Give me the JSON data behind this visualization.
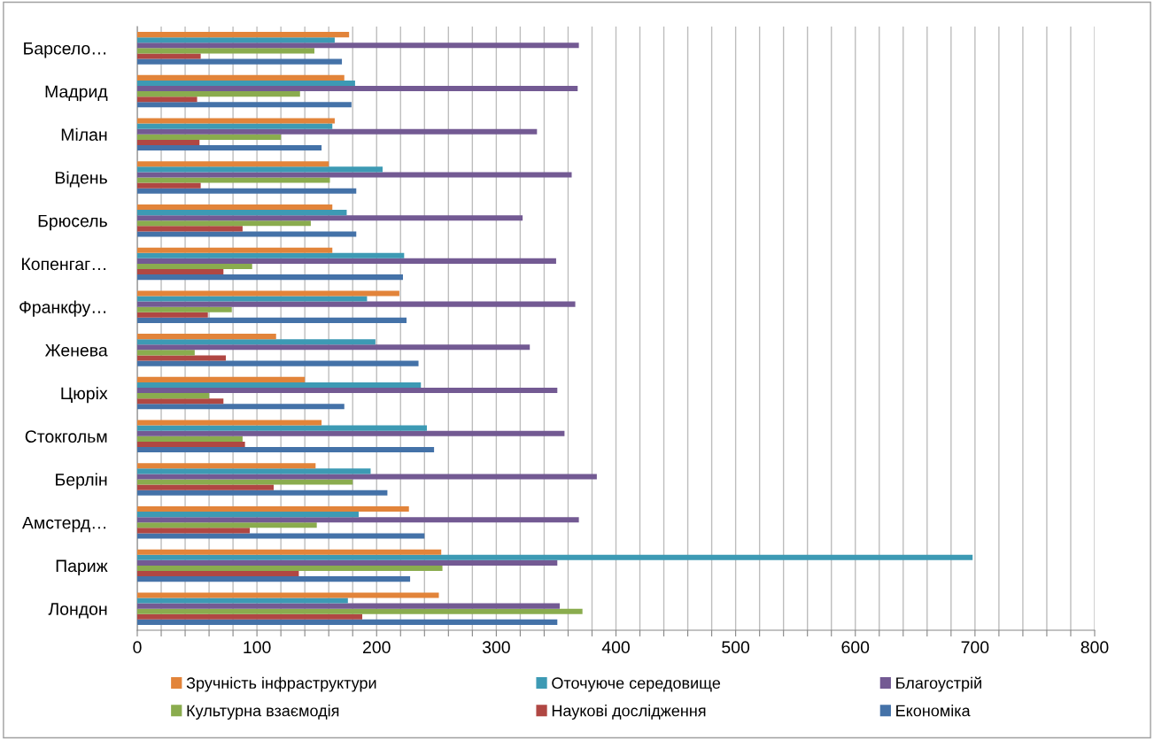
{
  "chart_data": {
    "type": "bar",
    "orientation": "horizontal",
    "categories": [
      "Барсело…",
      "Мадрид",
      "Мілан",
      "Відень",
      "Брюсель",
      "Копенгаг…",
      "Франкфу…",
      "Женева",
      "Цюріх",
      "Стокгольм",
      "Берлін",
      "Амстерд…",
      "Париж",
      "Лондон"
    ],
    "series": [
      {
        "name": "Економіка",
        "color": "#4472a8",
        "values": [
          171,
          179,
          154,
          183,
          183,
          222,
          225,
          235,
          173,
          248,
          209,
          240,
          228,
          351
        ]
      },
      {
        "name": "Наукові дослідження",
        "color": "#b04743",
        "values": [
          53,
          50,
          52,
          53,
          88,
          72,
          59,
          74,
          72,
          90,
          114,
          94,
          135,
          188
        ]
      },
      {
        "name": "Культурна взаємодія",
        "color": "#8aac4e",
        "values": [
          148,
          136,
          120,
          161,
          145,
          96,
          79,
          48,
          60,
          88,
          180,
          150,
          255,
          372
        ]
      },
      {
        "name": "Благоустрій",
        "color": "#735a93",
        "values": [
          369,
          368,
          334,
          363,
          322,
          350,
          366,
          328,
          351,
          357,
          384,
          369,
          351,
          353
        ]
      },
      {
        "name": "Оточуюче середовище",
        "color": "#3d9ab4",
        "values": [
          165,
          182,
          163,
          205,
          175,
          223,
          192,
          199,
          237,
          242,
          195,
          185,
          698,
          176
        ]
      },
      {
        "name": "Зручність інфраструктури",
        "color": "#e2843a",
        "values": [
          177,
          173,
          165,
          160,
          163,
          163,
          219,
          116,
          140,
          154,
          149,
          227,
          254,
          252
        ]
      }
    ],
    "xlim": [
      0,
      800
    ],
    "xticks": [
      0,
      {
        "value": 20,
        "label": null
      },
      {
        "value": 40,
        "label": null
      },
      {
        "value": 60,
        "label": null
      },
      {
        "value": 80,
        "label": null
      },
      100,
      {
        "value": 120,
        "label": null
      },
      {
        "value": 140,
        "label": null
      },
      {
        "value": 160,
        "label": null
      },
      {
        "value": 180,
        "label": null
      },
      200,
      {
        "value": 220,
        "label": null
      },
      {
        "value": 240,
        "label": null
      },
      {
        "value": 260,
        "label": null
      },
      {
        "value": 280,
        "label": null
      },
      300,
      {
        "value": 320,
        "label": null
      },
      {
        "value": 340,
        "label": null
      },
      {
        "value": 360,
        "label": null
      },
      {
        "value": 380,
        "label": null
      },
      400,
      {
        "value": 420,
        "label": null
      },
      {
        "value": 440,
        "label": null
      },
      {
        "value": 460,
        "label": null
      },
      {
        "value": 480,
        "label": null
      },
      500,
      {
        "value": 520,
        "label": null
      },
      {
        "value": 540,
        "label": null
      },
      {
        "value": 560,
        "label": null
      },
      {
        "value": 580,
        "label": null
      },
      600,
      {
        "value": 620,
        "label": null
      },
      {
        "value": 640,
        "label": null
      },
      {
        "value": 660,
        "label": null
      },
      {
        "value": 680,
        "label": null
      },
      700,
      {
        "value": 720,
        "label": null
      },
      {
        "value": 740,
        "label": null
      },
      {
        "value": 760,
        "label": null
      },
      {
        "value": 780,
        "label": null
      },
      800
    ],
    "grid": "x",
    "legend": "bottom"
  }
}
